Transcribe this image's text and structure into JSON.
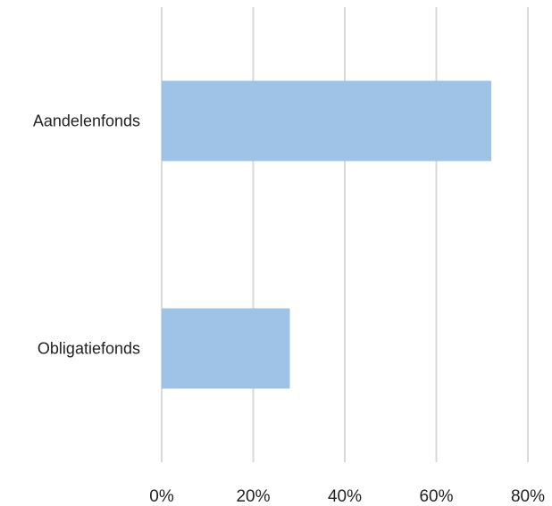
{
  "chart_data": {
    "type": "bar",
    "orientation": "horizontal",
    "categories": [
      "Aandelenfonds",
      "Obligatiefonds"
    ],
    "values": [
      72,
      28
    ],
    "x_ticks": [
      "0%",
      "20%",
      "40%",
      "60%",
      "80%"
    ],
    "xlim": [
      0,
      80
    ],
    "unit": "%",
    "grid": true,
    "legend": "none",
    "colors": {
      "bar": "#9fc3e7",
      "grid": "#d9d9d9",
      "text": "#222222"
    }
  }
}
